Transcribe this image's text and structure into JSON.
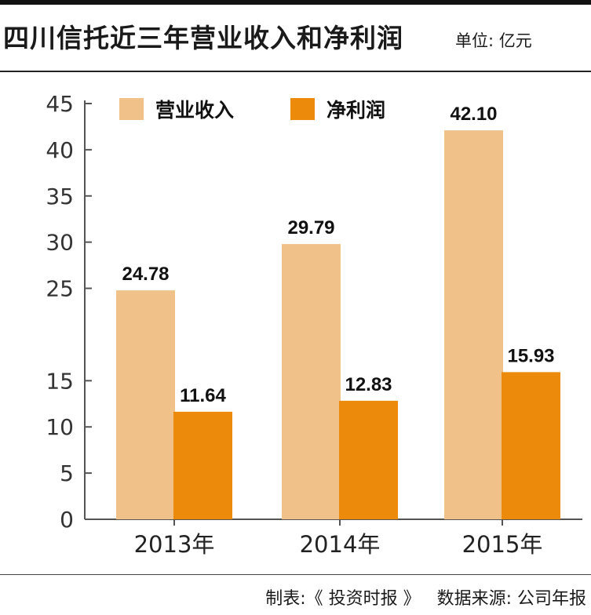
{
  "header": {
    "title": "四川信托近三年营业收入和净利润",
    "unit": "单位: 亿元"
  },
  "footer": {
    "maker": "制表:《 投资时报 》",
    "source": "数据来源: 公司年报"
  },
  "colors": {
    "revenue": "#F0C28A",
    "profit": "#EC8A0C",
    "axis": "#555555"
  },
  "chart_data": {
    "type": "bar",
    "title": "四川信托近三年营业收入和净利润",
    "categories": [
      "2013年",
      "2014年",
      "2015年"
    ],
    "series": [
      {
        "name": "营业收入",
        "values": [
          24.78,
          29.79,
          42.1
        ],
        "labels": [
          "24.78",
          "29.79",
          "42.10"
        ]
      },
      {
        "name": "净利润",
        "values": [
          11.64,
          12.83,
          15.93
        ],
        "labels": [
          "11.64",
          "12.83",
          "15.93"
        ]
      }
    ],
    "ylim": [
      0,
      45
    ],
    "yticks": [
      "0",
      "5",
      "10",
      "15",
      "25",
      "30",
      "35",
      "40",
      "45"
    ],
    "xlabel": "",
    "ylabel": "",
    "grid": false,
    "legend": "top-left"
  }
}
